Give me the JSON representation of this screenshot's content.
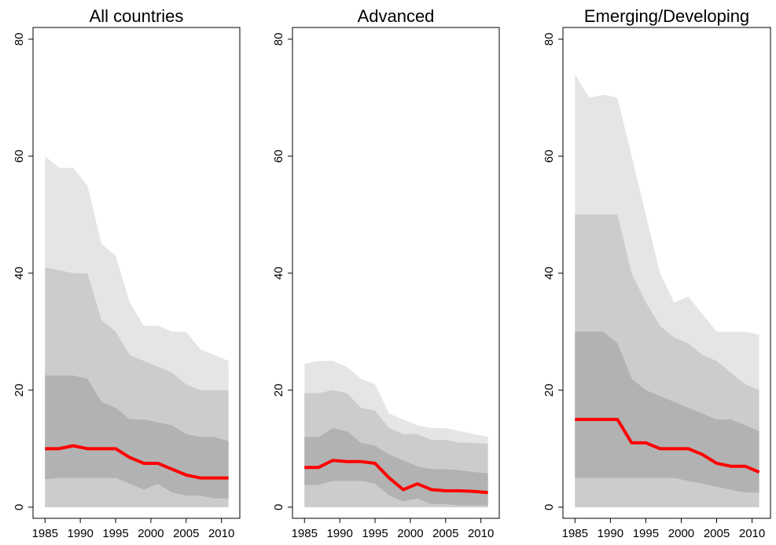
{
  "chart_data": [
    {
      "type": "fan",
      "title": "All countries",
      "x": [
        1985,
        1987,
        1989,
        1991,
        1993,
        1995,
        1997,
        1999,
        2001,
        2003,
        2005,
        2007,
        2009,
        2011
      ],
      "xlim": [
        1983.3,
        2012.6
      ],
      "xticks": [
        1985,
        1990,
        1995,
        2000,
        2005,
        2010
      ],
      "ylim": [
        -1.9,
        82
      ],
      "yticks": [
        0,
        20,
        40,
        60,
        80
      ],
      "bands": [
        {
          "color": "#e5e5e5",
          "upper": [
            60,
            58,
            58,
            55,
            45,
            43,
            35,
            31,
            31,
            30,
            30,
            27,
            26,
            25
          ],
          "lower": [
            0,
            0,
            0,
            0,
            0,
            0,
            0,
            0,
            0,
            0,
            0,
            0,
            0,
            0
          ]
        },
        {
          "color": "#cccccc",
          "upper": [
            41,
            40.5,
            40,
            40,
            32,
            30,
            26,
            25,
            24,
            23,
            21,
            20,
            20,
            20
          ],
          "lower": [
            0,
            0,
            0,
            0,
            0,
            0,
            0,
            0,
            0,
            0,
            0,
            0,
            0,
            0
          ]
        },
        {
          "color": "#b2b2b2",
          "upper": [
            22.5,
            22.5,
            22.5,
            22,
            18,
            17,
            15,
            15,
            14.5,
            14,
            12.5,
            12,
            12,
            11.3
          ],
          "lower": [
            4.8,
            5,
            5,
            5,
            5,
            5,
            4,
            3,
            4,
            2.5,
            2,
            2,
            1.5,
            1.5
          ]
        }
      ],
      "median": {
        "color": "#ff0000",
        "values": [
          10,
          10,
          10.5,
          10,
          10,
          10,
          8.5,
          7.5,
          7.5,
          6.5,
          5.5,
          5,
          5,
          5
        ]
      }
    },
    {
      "type": "fan",
      "title": "Advanced",
      "x": [
        1985,
        1987,
        1989,
        1991,
        1993,
        1995,
        1997,
        1999,
        2001,
        2003,
        2005,
        2007,
        2009,
        2011
      ],
      "xlim": [
        1983.3,
        2012.6
      ],
      "xticks": [
        1985,
        1990,
        1995,
        2000,
        2005,
        2010
      ],
      "ylim": [
        -1.9,
        82
      ],
      "yticks": [
        0,
        20,
        40,
        60,
        80
      ],
      "bands": [
        {
          "color": "#e5e5e5",
          "upper": [
            24.5,
            25,
            25,
            24,
            22,
            21,
            16,
            15,
            14,
            13.5,
            13.5,
            13,
            12.5,
            12
          ],
          "lower": [
            0,
            0,
            0,
            0,
            0,
            0,
            0,
            0,
            0,
            0,
            0,
            0,
            0,
            0
          ]
        },
        {
          "color": "#cccccc",
          "upper": [
            19.5,
            19.5,
            20,
            19.5,
            17,
            16.5,
            13.5,
            12.5,
            12.5,
            11.5,
            11.5,
            11,
            11,
            10.8
          ],
          "lower": [
            0,
            0,
            0,
            0,
            0,
            0,
            0,
            0,
            0,
            0,
            0,
            0,
            0,
            0
          ]
        },
        {
          "color": "#b2b2b2",
          "upper": [
            12,
            12,
            13.5,
            13,
            11,
            10.5,
            9,
            8,
            7,
            6.5,
            6.5,
            6.3,
            6,
            5.8
          ],
          "lower": [
            3.8,
            3.8,
            4.5,
            4.5,
            4.5,
            4,
            2,
            1,
            1.5,
            0.5,
            0.5,
            0.3,
            0.3,
            0.3
          ]
        }
      ],
      "median": {
        "color": "#ff0000",
        "values": [
          6.8,
          6.8,
          8,
          7.8,
          7.8,
          7.5,
          5,
          3,
          4,
          3,
          2.8,
          2.8,
          2.7,
          2.5
        ]
      }
    },
    {
      "type": "fan",
      "title": "Emerging/Developing",
      "x": [
        1985,
        1987,
        1989,
        1991,
        1993,
        1995,
        1997,
        1999,
        2001,
        2003,
        2005,
        2007,
        2009,
        2011
      ],
      "xlim": [
        1983.3,
        2012.6
      ],
      "xticks": [
        1985,
        1990,
        1995,
        2000,
        2005,
        2010
      ],
      "ylim": [
        -1.9,
        82
      ],
      "yticks": [
        0,
        20,
        40,
        60,
        80
      ],
      "bands": [
        {
          "color": "#e5e5e5",
          "upper": [
            74,
            70,
            70.5,
            70,
            60,
            50,
            40,
            35,
            36,
            33,
            30,
            30,
            30,
            29.5
          ],
          "lower": [
            0,
            0,
            0,
            0,
            0,
            0,
            0,
            0,
            0,
            0,
            0,
            0,
            0,
            0
          ]
        },
        {
          "color": "#cccccc",
          "upper": [
            50,
            50,
            50,
            50,
            40,
            35,
            31,
            29,
            28,
            26,
            25,
            23,
            21,
            20
          ],
          "lower": [
            0,
            0,
            0,
            0,
            0,
            0,
            0,
            0,
            0,
            0,
            0,
            0,
            0,
            0
          ]
        },
        {
          "color": "#b2b2b2",
          "upper": [
            30,
            30,
            30,
            28,
            22,
            20,
            19,
            18,
            17,
            16,
            15,
            15,
            14,
            13
          ],
          "lower": [
            5,
            5,
            5,
            5,
            5,
            5,
            5,
            5,
            4.5,
            4,
            3.5,
            3,
            2.5,
            2.5
          ]
        }
      ],
      "median": {
        "color": "#ff0000",
        "values": [
          15,
          15,
          15,
          15,
          11,
          11,
          10,
          10,
          10,
          9,
          7.5,
          7,
          7,
          6
        ]
      }
    }
  ]
}
